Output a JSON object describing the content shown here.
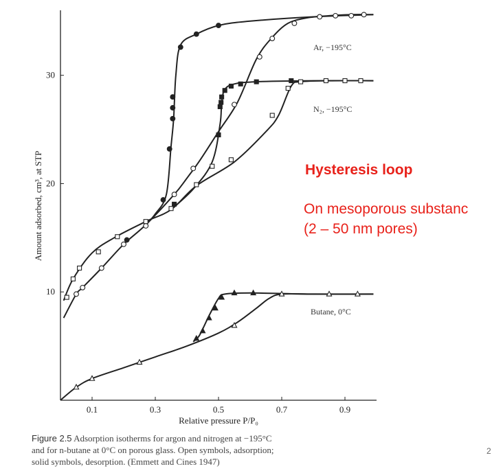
{
  "chart_data": {
    "type": "line",
    "xlabel": "Relative pressure P/P₀",
    "ylabel": "Amount adsorbed, cm³, at STP",
    "xlim": [
      0.0,
      1.0
    ],
    "ylim": [
      0,
      36
    ],
    "x_ticks": [
      "0.1",
      "0.3",
      "0.5",
      "0.7",
      "0.9"
    ],
    "x_tick_values": [
      0.1,
      0.3,
      0.5,
      0.7,
      0.9
    ],
    "y_ticks": [
      "10",
      "20",
      "30"
    ],
    "y_tick_values": [
      10,
      20,
      30
    ],
    "grid": false,
    "series": [
      {
        "name": "Ar, −195°C",
        "branch": "adsorption",
        "points": [
          [
            0.01,
            7.6
          ],
          [
            0.05,
            9.8
          ],
          [
            0.07,
            10.4
          ],
          [
            0.13,
            12.2
          ],
          [
            0.2,
            14.4
          ],
          [
            0.27,
            16.2
          ],
          [
            0.36,
            19.0
          ],
          [
            0.4,
            20.5
          ],
          [
            0.44,
            22.1
          ],
          [
            0.5,
            24.8
          ],
          [
            0.56,
            27.5
          ],
          [
            0.62,
            31.5
          ],
          [
            0.67,
            33.5
          ],
          [
            0.72,
            34.8
          ],
          [
            0.78,
            35.3
          ],
          [
            0.85,
            35.5
          ],
          [
            0.92,
            35.6
          ],
          [
            0.99,
            35.6
          ]
        ],
        "markers": [
          [
            0.05,
            9.8
          ],
          [
            0.07,
            10.4
          ],
          [
            0.13,
            12.2
          ],
          [
            0.2,
            14.4
          ],
          [
            0.27,
            16.1
          ],
          [
            0.36,
            19.0
          ],
          [
            0.42,
            21.4
          ],
          [
            0.55,
            27.3
          ],
          [
            0.63,
            31.7
          ],
          [
            0.67,
            33.4
          ],
          [
            0.74,
            34.8
          ],
          [
            0.82,
            35.4
          ],
          [
            0.87,
            35.5
          ],
          [
            0.92,
            35.5
          ],
          [
            0.96,
            35.6
          ]
        ]
      },
      {
        "name": "Ar, −195°C",
        "branch": "desorption",
        "points": [
          [
            0.99,
            35.6
          ],
          [
            0.8,
            35.4
          ],
          [
            0.6,
            35.0
          ],
          [
            0.5,
            34.6
          ],
          [
            0.43,
            33.8
          ],
          [
            0.38,
            32.8
          ],
          [
            0.365,
            30.0
          ],
          [
            0.358,
            26.0
          ],
          [
            0.35,
            23.5
          ],
          [
            0.335,
            19.0
          ],
          [
            0.3,
            17.2
          ],
          [
            0.27,
            16.2
          ]
        ],
        "markers": [
          [
            0.5,
            34.6
          ],
          [
            0.43,
            33.8
          ],
          [
            0.38,
            32.6
          ],
          [
            0.355,
            28.0
          ],
          [
            0.355,
            27.0
          ],
          [
            0.355,
            26.0
          ],
          [
            0.345,
            23.2
          ],
          [
            0.325,
            18.5
          ],
          [
            0.21,
            14.8
          ]
        ]
      },
      {
        "name": "N₂, −195°C",
        "branch": "adsorption",
        "points": [
          [
            0.01,
            9.2
          ],
          [
            0.04,
            11.2
          ],
          [
            0.1,
            13.6
          ],
          [
            0.17,
            15.0
          ],
          [
            0.27,
            16.5
          ],
          [
            0.35,
            17.6
          ],
          [
            0.43,
            19.8
          ],
          [
            0.55,
            22.0
          ],
          [
            0.65,
            24.8
          ],
          [
            0.69,
            26.3
          ],
          [
            0.73,
            29.0
          ],
          [
            0.76,
            29.4
          ],
          [
            0.85,
            29.5
          ],
          [
            0.99,
            29.5
          ]
        ],
        "markers": [
          [
            0.02,
            9.5
          ],
          [
            0.04,
            11.2
          ],
          [
            0.06,
            12.2
          ],
          [
            0.12,
            13.7
          ],
          [
            0.18,
            15.1
          ],
          [
            0.27,
            16.5
          ],
          [
            0.35,
            17.7
          ],
          [
            0.43,
            19.9
          ],
          [
            0.48,
            21.6
          ],
          [
            0.54,
            22.2
          ],
          [
            0.67,
            26.3
          ],
          [
            0.72,
            28.8
          ],
          [
            0.76,
            29.4
          ],
          [
            0.84,
            29.5
          ],
          [
            0.9,
            29.5
          ],
          [
            0.95,
            29.5
          ]
        ]
      },
      {
        "name": "N₂, −195°C",
        "branch": "desorption",
        "points": [
          [
            0.99,
            29.5
          ],
          [
            0.8,
            29.5
          ],
          [
            0.62,
            29.4
          ],
          [
            0.55,
            29.2
          ],
          [
            0.52,
            28.7
          ],
          [
            0.51,
            27.5
          ],
          [
            0.505,
            25.5
          ],
          [
            0.48,
            22.0
          ],
          [
            0.42,
            19.5
          ],
          [
            0.35,
            17.6
          ]
        ],
        "markers": [
          [
            0.73,
            29.5
          ],
          [
            0.62,
            29.4
          ],
          [
            0.57,
            29.2
          ],
          [
            0.54,
            29.0
          ],
          [
            0.52,
            28.6
          ],
          [
            0.51,
            28.0
          ],
          [
            0.508,
            27.5
          ],
          [
            0.505,
            27.1
          ],
          [
            0.5,
            24.5
          ],
          [
            0.36,
            18.1
          ]
        ]
      },
      {
        "name": "Butane, 0°C",
        "branch": "adsorption",
        "points": [
          [
            0.0,
            0.0
          ],
          [
            0.05,
            1.2
          ],
          [
            0.1,
            2.0
          ],
          [
            0.2,
            3.0
          ],
          [
            0.3,
            4.0
          ],
          [
            0.4,
            5.0
          ],
          [
            0.5,
            6.2
          ],
          [
            0.56,
            7.2
          ],
          [
            0.62,
            8.5
          ],
          [
            0.66,
            9.4
          ],
          [
            0.7,
            9.8
          ],
          [
            0.8,
            9.8
          ],
          [
            0.99,
            9.8
          ]
        ],
        "markers": [
          [
            0.05,
            1.2
          ],
          [
            0.1,
            2.0
          ],
          [
            0.25,
            3.5
          ],
          [
            0.55,
            6.9
          ],
          [
            0.7,
            9.8
          ],
          [
            0.85,
            9.8
          ],
          [
            0.94,
            9.8
          ]
        ]
      },
      {
        "name": "Butane, 0°C",
        "branch": "desorption",
        "points": [
          [
            0.99,
            9.8
          ],
          [
            0.8,
            9.8
          ],
          [
            0.6,
            9.9
          ],
          [
            0.52,
            9.8
          ],
          [
            0.5,
            9.4
          ],
          [
            0.47,
            7.8
          ],
          [
            0.44,
            6.0
          ],
          [
            0.42,
            5.4
          ]
        ],
        "markers": [
          [
            0.61,
            9.9
          ],
          [
            0.55,
            9.9
          ],
          [
            0.51,
            9.5
          ],
          [
            0.49,
            8.5
          ],
          [
            0.47,
            7.6
          ],
          [
            0.45,
            6.4
          ],
          [
            0.43,
            5.7
          ]
        ]
      }
    ],
    "series_labels": [
      "Ar, −195°C",
      "N₂, −195°C",
      "Butane, 0°C"
    ],
    "legend_note": "Open symbols, adsorption; solid symbols, desorption"
  },
  "annotations": {
    "title": "Hysteresis loop",
    "line1": "On mesoporous substanc",
    "line2": "(2 – 50 nm pores)"
  },
  "caption": {
    "figure_label": "Figure 2.5",
    "line1": "Adsorption isotherms for argon and nitrogen at −195°C",
    "line2": "and for n-butane at 0°C on porous glass. Open symbols, adsorption;",
    "line3": "solid symbols, desorption. (Emmett and Cines 1947)"
  },
  "colors": {
    "curve": "#222222",
    "annotation": "#e8211a"
  },
  "slide_number": "2"
}
